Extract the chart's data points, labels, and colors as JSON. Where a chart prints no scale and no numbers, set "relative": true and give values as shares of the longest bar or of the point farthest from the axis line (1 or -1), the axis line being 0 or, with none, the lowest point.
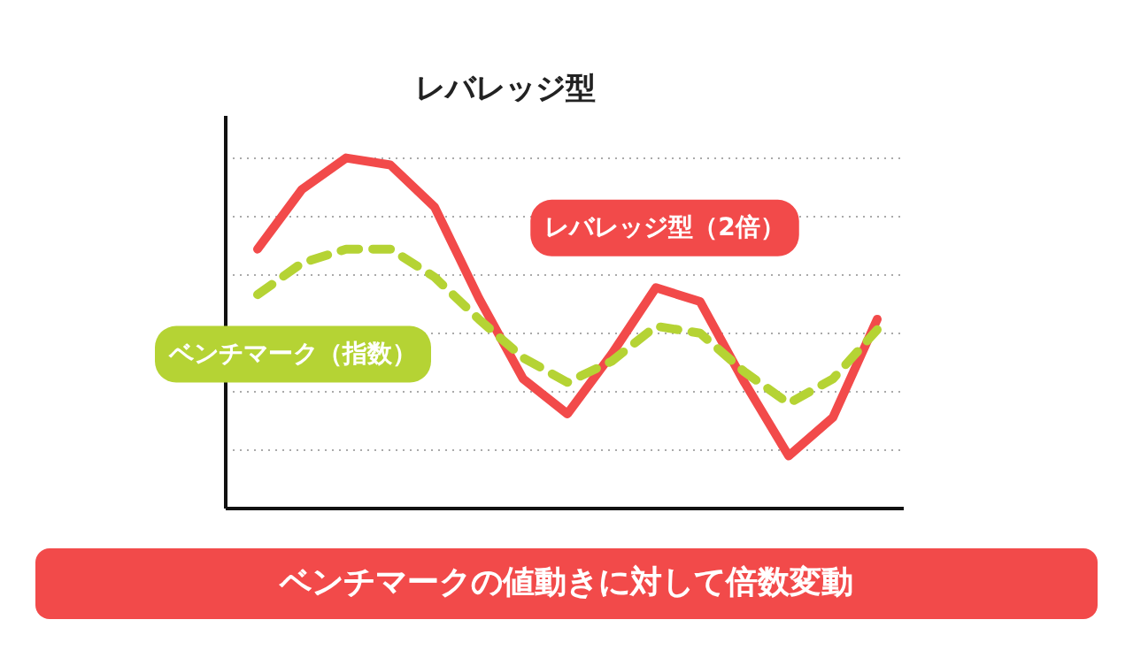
{
  "chart_data": {
    "type": "line",
    "title": "レバレッジ型",
    "relative": true,
    "grid": "y",
    "categories": [
      null,
      null,
      null,
      null,
      null,
      null,
      null,
      null,
      null,
      null,
      null,
      null,
      null,
      null,
      null
    ],
    "series": [
      {
        "name": "レバレッジ型（2倍）",
        "color": "#f24a4a",
        "line_style": "solid",
        "values": [
          0.74,
          0.91,
          1.0,
          0.98,
          0.86,
          0.6,
          0.37,
          0.27,
          0.44,
          0.63,
          0.59,
          0.36,
          0.15,
          0.26,
          0.54
        ]
      },
      {
        "name": "ベンチマーク（指数）",
        "color": "#b5d334",
        "line_style": "dashed",
        "values": [
          0.61,
          0.7,
          0.74,
          0.74,
          0.66,
          0.54,
          0.43,
          0.36,
          0.42,
          0.52,
          0.5,
          0.39,
          0.3,
          0.37,
          0.51
        ]
      }
    ],
    "annotations": [
      "ベンチマークの値動きに対して倍数変動"
    ]
  }
}
